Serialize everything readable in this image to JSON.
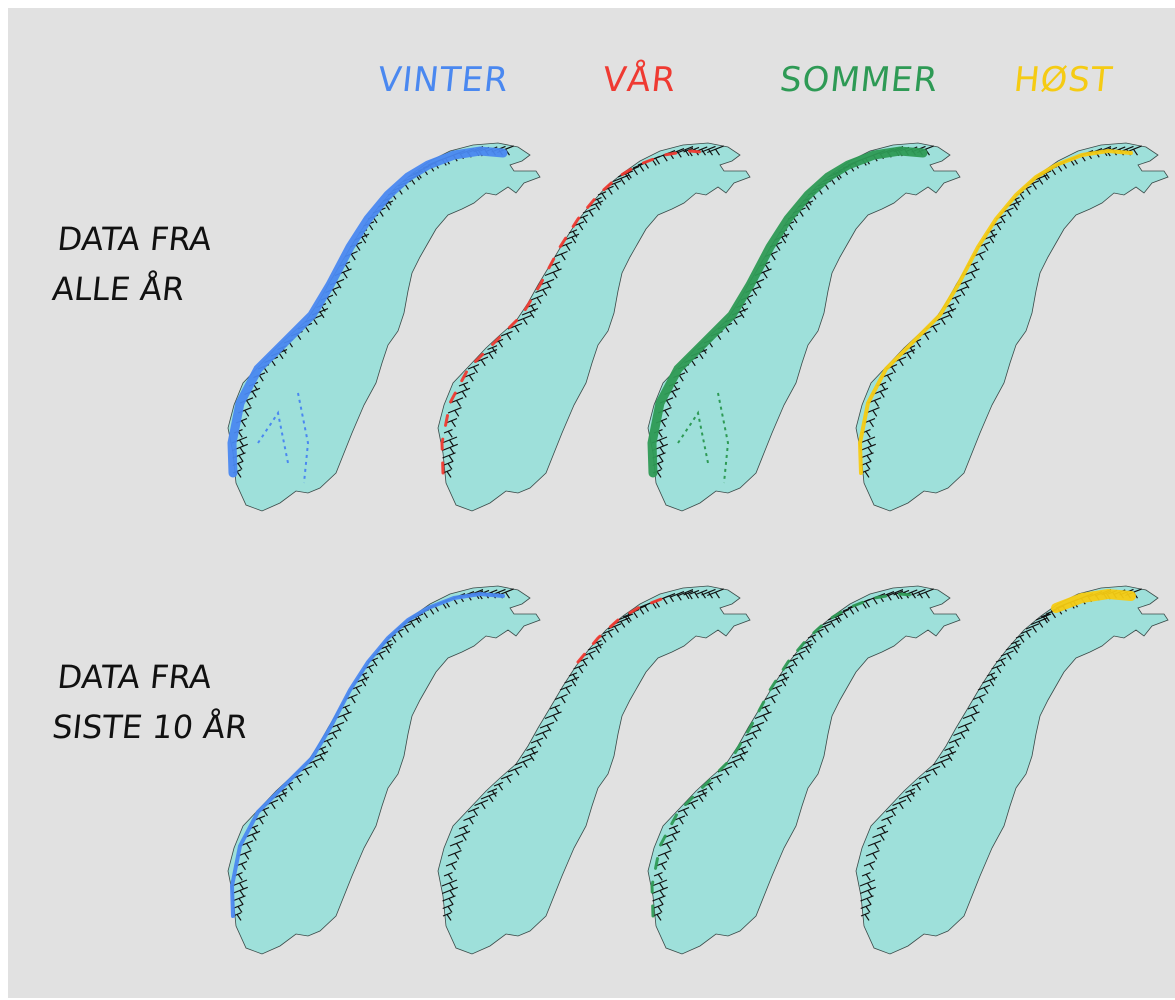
{
  "seasons": [
    {
      "key": "vinter",
      "label": "VINTER",
      "color": "#4a88f0"
    },
    {
      "key": "var",
      "label": "VÅR",
      "color": "#ef3a32"
    },
    {
      "key": "sommer",
      "label": "SOMMER",
      "color": "#2e9a55"
    },
    {
      "key": "host",
      "label": "HØST",
      "color": "#f5cb13"
    }
  ],
  "rows": [
    {
      "line1": "DATA FRA",
      "line2": "ALLE ÅR"
    },
    {
      "line1": "DATA FRA",
      "line2": "SISTE 10 ÅR"
    }
  ],
  "map_colors": {
    "land": "#9ee0da",
    "coast": "#111111"
  },
  "coverage": [
    [
      {
        "season": "vinter",
        "level": "high"
      },
      {
        "season": "var",
        "level": "low"
      },
      {
        "season": "sommer",
        "level": "high"
      },
      {
        "season": "host",
        "level": "medium"
      }
    ],
    [
      {
        "season": "vinter",
        "level": "medium"
      },
      {
        "season": "var",
        "level": "minimal"
      },
      {
        "season": "sommer",
        "level": "low"
      },
      {
        "season": "host",
        "level": "north-only"
      }
    ]
  ]
}
